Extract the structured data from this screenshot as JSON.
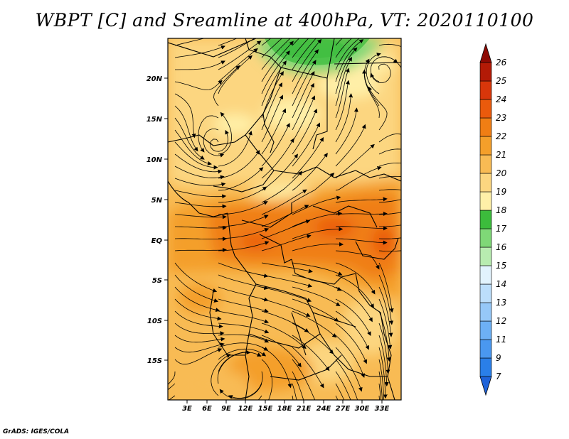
{
  "title": "WBPT [C] and Sreamline at 400hPa, VT: 2020110100",
  "credit": "GrADS: IGES/COLA",
  "map": {
    "lat_labels": [
      "20N",
      "15N",
      "10N",
      "5N",
      "EQ",
      "5S",
      "10S",
      "15S"
    ],
    "lon_labels": [
      "3E",
      "6E",
      "9E",
      "12E",
      "15E",
      "18E",
      "21E",
      "24E",
      "27E",
      "30E",
      "33E"
    ],
    "lon_range": [
      0,
      36
    ],
    "lat_range": [
      -20,
      24.5
    ]
  },
  "colorbar": {
    "labels": [
      "7",
      "9",
      "11",
      "12",
      "13",
      "14",
      "15",
      "16",
      "17",
      "18",
      "19",
      "20",
      "21",
      "22",
      "23",
      "24",
      "25",
      "26"
    ],
    "colors": [
      "#1f63d9",
      "#2a7fe8",
      "#4a98f0",
      "#6db0f5",
      "#96c8f8",
      "#bcdefb",
      "#e2f3fd",
      "#b8ecb0",
      "#7fd877",
      "#3cbc3c",
      "#fff0a8",
      "#fcd680",
      "#f8bb54",
      "#f49f2a",
      "#f07e14",
      "#ea5a0c",
      "#d8360a",
      "#b31a06",
      "#8e0a04"
    ]
  },
  "chart_data": {
    "type": "heatmap",
    "title": "WBPT [C] and Sreamline at 400hPa, VT: 2020110100",
    "x_ticks": [
      "3E",
      "6E",
      "9E",
      "12E",
      "15E",
      "18E",
      "21E",
      "24E",
      "27E",
      "30E",
      "33E"
    ],
    "y_ticks": [
      "20N",
      "15N",
      "10N",
      "5N",
      "EQ",
      "5S",
      "10S",
      "15S"
    ],
    "colorbar_levels": [
      7,
      9,
      11,
      12,
      13,
      14,
      15,
      16,
      17,
      18,
      19,
      20,
      21,
      22,
      23,
      24,
      25,
      26
    ],
    "value_range_shown": [
      17,
      23
    ]
  }
}
